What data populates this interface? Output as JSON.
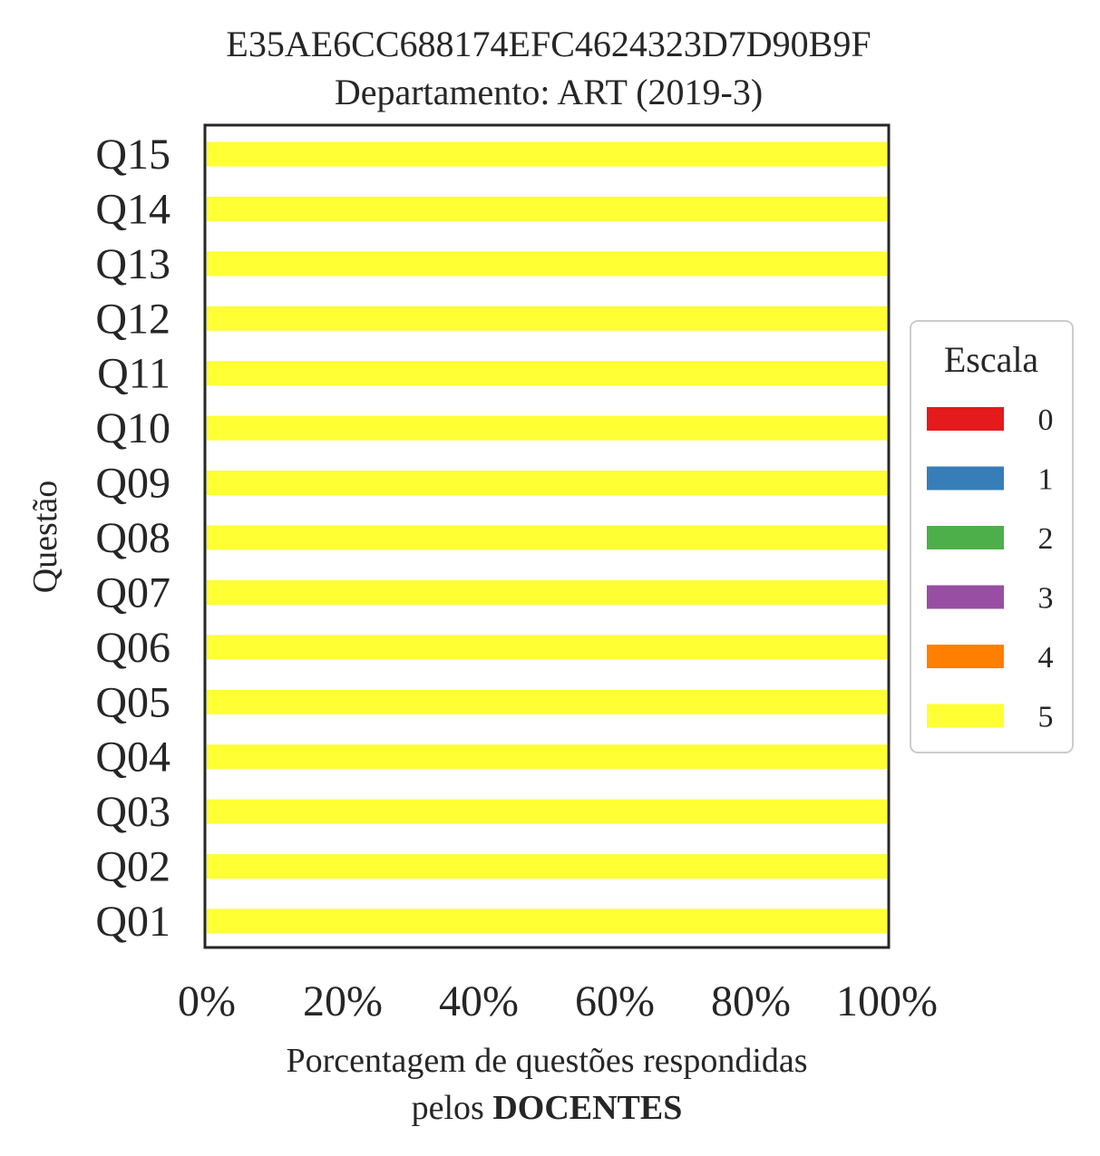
{
  "chart_data": {
    "type": "bar",
    "orientation": "horizontal",
    "stacked": true,
    "title": "E35AE6CC688174EFC4624323D7D90B9F",
    "subtitle": "Departamento: ART (2019-3)",
    "ylabel": "Questão",
    "xlabel_line1": "Porcentagem de questões respondidas",
    "xlabel_line2_prefix": "pelos ",
    "xlabel_line2_bold": "DOCENTES",
    "categories": [
      "Q01",
      "Q02",
      "Q03",
      "Q04",
      "Q05",
      "Q06",
      "Q07",
      "Q08",
      "Q09",
      "Q10",
      "Q11",
      "Q12",
      "Q13",
      "Q14",
      "Q15"
    ],
    "xlim": [
      0,
      100
    ],
    "x_ticks": [
      0,
      20,
      40,
      60,
      80,
      100
    ],
    "x_tick_labels": [
      "0%",
      "20%",
      "40%",
      "60%",
      "80%",
      "100%"
    ],
    "grid": false,
    "legend": {
      "title": "Escala",
      "placement": "right",
      "entries": [
        {
          "label": "0",
          "color": "#e41a1c"
        },
        {
          "label": "1",
          "color": "#377eb8"
        },
        {
          "label": "2",
          "color": "#4daf4a"
        },
        {
          "label": "3",
          "color": "#984ea3"
        },
        {
          "label": "4",
          "color": "#ff7f00"
        },
        {
          "label": "5",
          "color": "#ffff33"
        }
      ]
    },
    "series": [
      {
        "name": "0",
        "color": "#e41a1c",
        "values": [
          0,
          0,
          0,
          0,
          0,
          0,
          0,
          0,
          0,
          0,
          0,
          0,
          0,
          0,
          0
        ]
      },
      {
        "name": "1",
        "color": "#377eb8",
        "values": [
          0,
          0,
          0,
          0,
          0,
          0,
          0,
          0,
          0,
          0,
          0,
          0,
          0,
          0,
          0
        ]
      },
      {
        "name": "2",
        "color": "#4daf4a",
        "values": [
          0,
          0,
          0,
          0,
          0,
          0,
          0,
          0,
          0,
          0,
          0,
          0,
          0,
          0,
          0
        ]
      },
      {
        "name": "3",
        "color": "#984ea3",
        "values": [
          0,
          0,
          0,
          0,
          0,
          0,
          0,
          0,
          0,
          0,
          0,
          0,
          0,
          0,
          0
        ]
      },
      {
        "name": "4",
        "color": "#ff7f00",
        "values": [
          0,
          0,
          0,
          0,
          0,
          0,
          0,
          0,
          0,
          0,
          0,
          0,
          0,
          0,
          0
        ]
      },
      {
        "name": "5",
        "color": "#ffff33",
        "values": [
          100,
          100,
          100,
          100,
          100,
          100,
          100,
          100,
          100,
          100,
          100,
          100,
          100,
          100,
          100
        ]
      }
    ]
  }
}
